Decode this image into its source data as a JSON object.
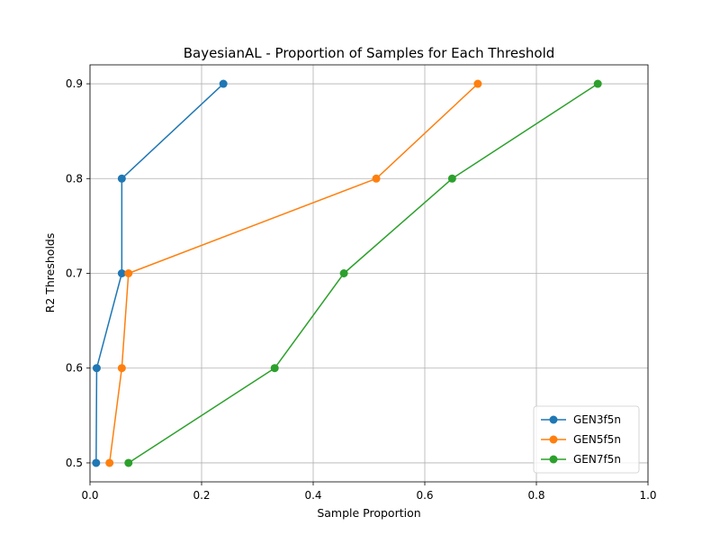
{
  "chart_data": {
    "type": "line",
    "title": "BayesianAL - Proportion of Samples for Each Threshold",
    "xlabel": "Sample Proportion",
    "ylabel": "R2 Thresholds",
    "xlim": [
      0.0,
      1.0
    ],
    "ylim": [
      0.48,
      0.92
    ],
    "xticks": [
      0.0,
      0.2,
      0.4,
      0.6,
      0.8,
      1.0
    ],
    "xtick_labels": [
      "0.0",
      "0.2",
      "0.4",
      "0.6",
      "0.8",
      "1.0"
    ],
    "yticks": [
      0.5,
      0.6,
      0.7,
      0.8,
      0.9
    ],
    "ytick_labels": [
      "0.5",
      "0.6",
      "0.7",
      "0.8",
      "0.9"
    ],
    "grid": true,
    "legend_position": "lower-right",
    "series": [
      {
        "name": "GEN3f5n",
        "color": "#1f77b4",
        "marker": "circle",
        "points": [
          {
            "x": 0.011,
            "y": 0.5
          },
          {
            "x": 0.012,
            "y": 0.6
          },
          {
            "x": 0.057,
            "y": 0.7
          },
          {
            "x": 0.057,
            "y": 0.8
          },
          {
            "x": 0.239,
            "y": 0.9
          }
        ]
      },
      {
        "name": "GEN5f5n",
        "color": "#ff7f0e",
        "marker": "circle",
        "points": [
          {
            "x": 0.035,
            "y": 0.5
          },
          {
            "x": 0.057,
            "y": 0.6
          },
          {
            "x": 0.069,
            "y": 0.7
          },
          {
            "x": 0.513,
            "y": 0.8
          },
          {
            "x": 0.695,
            "y": 0.9
          }
        ]
      },
      {
        "name": "GEN7f5n",
        "color": "#2ca02c",
        "marker": "circle",
        "points": [
          {
            "x": 0.069,
            "y": 0.5
          },
          {
            "x": 0.331,
            "y": 0.6
          },
          {
            "x": 0.455,
            "y": 0.7
          },
          {
            "x": 0.649,
            "y": 0.8
          },
          {
            "x": 0.91,
            "y": 0.9
          }
        ]
      }
    ]
  }
}
